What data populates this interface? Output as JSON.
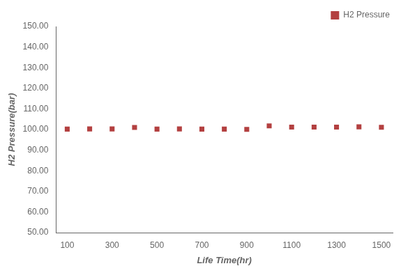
{
  "chart_data": {
    "type": "scatter",
    "x": [
      100,
      200,
      300,
      400,
      500,
      600,
      700,
      800,
      900,
      1000,
      1100,
      1200,
      1300,
      1400,
      1500
    ],
    "series": [
      {
        "name": "H2 Pressure",
        "color": "#B34040",
        "marker": "square",
        "values": [
          100.2,
          100.3,
          100.3,
          101.0,
          100.2,
          100.3,
          100.2,
          100.2,
          100.1,
          101.8,
          101.2,
          101.2,
          101.2,
          101.3,
          101.1
        ]
      }
    ],
    "xlabel": "Life Time(hr)",
    "ylabel": "H2 Pressure(bar)",
    "xlim": [
      50,
      1550
    ],
    "ylim": [
      50.0,
      150.0
    ],
    "xticks": [
      100,
      300,
      500,
      700,
      900,
      1100,
      1300,
      1500
    ],
    "yticks": [
      {
        "value": 50.0,
        "label": "50.00"
      },
      {
        "value": 60.0,
        "label": "60.00"
      },
      {
        "value": 70.0,
        "label": "70.00"
      },
      {
        "value": 80.0,
        "label": "80.00"
      },
      {
        "value": 90.0,
        "label": "90.00"
      },
      {
        "value": 100.0,
        "label": "100.00"
      },
      {
        "value": 110.0,
        "label": "110.00"
      },
      {
        "value": 120.0,
        "label": "120.00"
      },
      {
        "value": 130.0,
        "label": "130.00"
      },
      {
        "value": 140.0,
        "label": "140.00"
      },
      {
        "value": 150.0,
        "label": "150.00"
      }
    ],
    "grid": false,
    "legend": "upper right"
  }
}
